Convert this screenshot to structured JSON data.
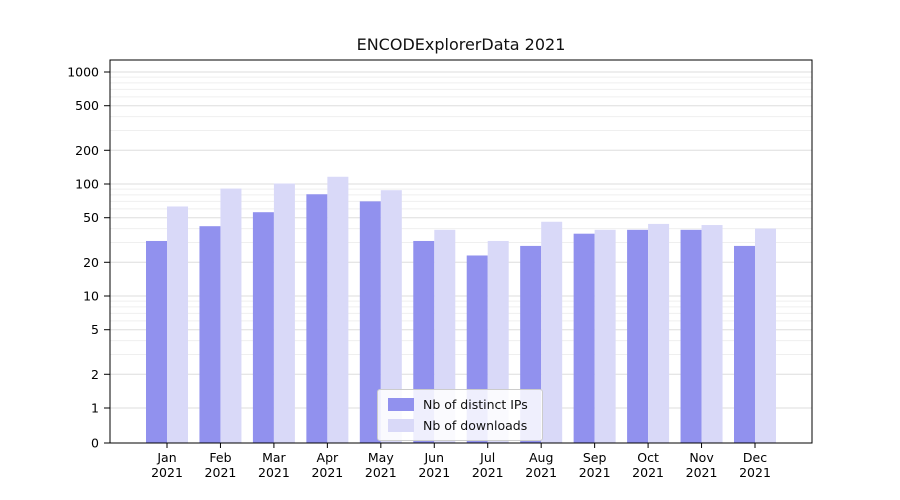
{
  "figure": {
    "title": "ENCODExplorerData 2021"
  },
  "chart_data": {
    "type": "bar",
    "title": "ENCODExplorerData 2021",
    "yscale": "symlog",
    "ylim": [
      0,
      1000
    ],
    "y_ticks": [
      0,
      1,
      2,
      5,
      10,
      20,
      50,
      100,
      200,
      500,
      1000
    ],
    "grid": true,
    "legend_position": "inside-bottom-center",
    "categories": [
      "Jan 2021",
      "Feb 2021",
      "Mar 2021",
      "Apr 2021",
      "May 2021",
      "Jun 2021",
      "Jul 2021",
      "Aug 2021",
      "Sep 2021",
      "Oct 2021",
      "Nov 2021",
      "Dec 2021"
    ],
    "month_labels": [
      "Jan",
      "Feb",
      "Mar",
      "Apr",
      "May",
      "Jun",
      "Jul",
      "Aug",
      "Sep",
      "Oct",
      "Nov",
      "Dec"
    ],
    "year_label": "2021",
    "series": [
      {
        "name": "Nb of distinct IPs",
        "color": "#9191ee",
        "values": [
          31,
          42,
          56,
          81,
          70,
          31,
          23,
          28,
          36,
          39,
          39,
          28
        ]
      },
      {
        "name": "Nb of downloads",
        "color": "#d9d9f8",
        "values": [
          63,
          91,
          101,
          116,
          88,
          39,
          31,
          46,
          39,
          44,
          43,
          40
        ]
      }
    ],
    "colors": {
      "grid_major": "#dedede",
      "grid_minor": "#efefef",
      "axis": "#000000"
    }
  }
}
